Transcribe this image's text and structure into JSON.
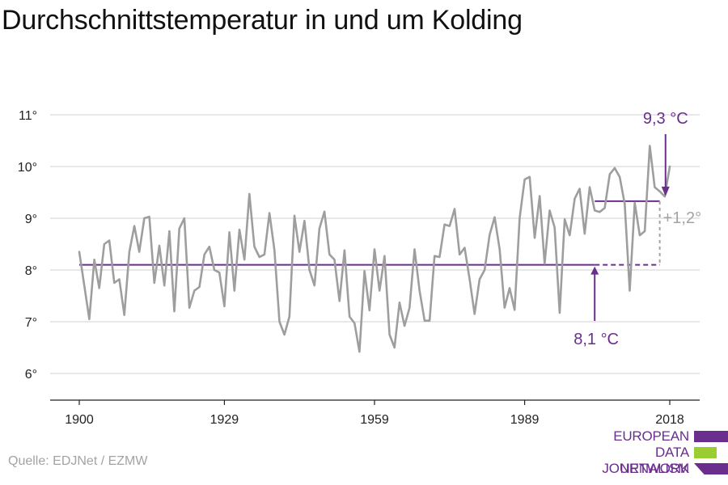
{
  "title": "Durchschnittstemperatur in und um Kolding",
  "source": "Quelle: EDJNet / EZMW",
  "logo": {
    "line1": "EUROPEAN",
    "line2": "DATA JOURNALISM",
    "line3": "NETWORK",
    "colors": [
      "#6a2e8e",
      "#9acd32",
      "#6a2e8e"
    ]
  },
  "chart_data": {
    "type": "line",
    "title": "Durchschnittstemperatur in und um Kolding",
    "x_ticks": [
      1900,
      1929,
      1959,
      1989,
      2018
    ],
    "y_ticks": [
      6,
      7,
      8,
      9,
      10,
      11
    ],
    "y_tick_labels": [
      "6°",
      "7°",
      "8°",
      "9°",
      "10°",
      "11°"
    ],
    "xlim": [
      1900,
      2018
    ],
    "ylim": [
      5.5,
      11.3
    ],
    "grid": true,
    "series": [
      {
        "color": "#9e9e9e",
        "x": [
          1900,
          1901,
          1902,
          1903,
          1904,
          1905,
          1906,
          1907,
          1908,
          1909,
          1910,
          1911,
          1912,
          1913,
          1914,
          1915,
          1916,
          1917,
          1918,
          1919,
          1920,
          1921,
          1922,
          1923,
          1924,
          1925,
          1926,
          1927,
          1928,
          1929,
          1930,
          1931,
          1932,
          1933,
          1934,
          1935,
          1936,
          1937,
          1938,
          1939,
          1940,
          1941,
          1942,
          1943,
          1944,
          1945,
          1946,
          1947,
          1948,
          1949,
          1950,
          1951,
          1952,
          1953,
          1954,
          1955,
          1956,
          1957,
          1958,
          1959,
          1960,
          1961,
          1962,
          1963,
          1964,
          1965,
          1966,
          1967,
          1968,
          1969,
          1970,
          1971,
          1972,
          1973,
          1974,
          1975,
          1976,
          1977,
          1978,
          1979,
          1980,
          1981,
          1982,
          1983,
          1984,
          1985,
          1986,
          1987,
          1988,
          1989,
          1990,
          1991,
          1992,
          1993,
          1994,
          1995,
          1996,
          1997,
          1998,
          1999,
          2000,
          2001,
          2002,
          2003,
          2004,
          2005,
          2006,
          2007,
          2008,
          2009,
          2010,
          2011,
          2012,
          2013,
          2014,
          2015,
          2016,
          2017,
          2018
        ],
        "values": [
          8.35,
          7.7,
          7.05,
          8.2,
          7.65,
          8.5,
          8.57,
          7.75,
          7.82,
          7.13,
          8.35,
          8.85,
          8.35,
          9.0,
          9.03,
          7.75,
          8.47,
          7.7,
          8.75,
          7.2,
          8.8,
          9.0,
          7.27,
          7.6,
          7.67,
          8.3,
          8.45,
          8.0,
          7.95,
          7.3,
          8.73,
          7.6,
          8.78,
          8.2,
          9.47,
          8.45,
          8.25,
          8.3,
          9.1,
          8.38,
          7.0,
          6.75,
          7.1,
          9.05,
          8.35,
          8.95,
          8.0,
          7.7,
          8.8,
          9.13,
          8.3,
          8.2,
          7.4,
          8.38,
          7.1,
          6.97,
          6.42,
          7.98,
          7.22,
          8.4,
          7.6,
          8.27,
          6.75,
          6.5,
          7.37,
          6.92,
          7.27,
          8.4,
          7.6,
          7.02,
          7.02,
          8.27,
          8.25,
          8.88,
          8.85,
          9.18,
          8.3,
          8.43,
          7.83,
          7.15,
          7.82,
          8.0,
          8.68,
          9.02,
          8.4,
          7.27,
          7.65,
          7.23,
          9.0,
          9.75,
          9.8,
          8.62,
          9.43,
          8.12,
          9.15,
          8.82,
          7.17,
          8.98,
          8.67,
          9.38,
          9.57,
          8.7,
          9.6,
          9.15,
          9.12,
          9.2,
          9.85,
          9.97,
          9.8,
          9.28,
          7.6,
          9.3,
          8.67,
          8.75,
          10.4,
          9.6,
          9.52,
          9.42,
          10.0
        ]
      }
    ],
    "reference_lines": [
      {
        "label": "8,1 °C",
        "value": 8.1,
        "x_start": 1900,
        "x_end": 2003,
        "x_dashed_end": 2016,
        "color": "#6a2e8e"
      },
      {
        "label": "9,3 °C",
        "value": 9.33,
        "x_start": 2003,
        "x_end": 2016,
        "color": "#6a2e8e"
      }
    ],
    "difference_label": "+1,2°",
    "annotation_colors": {
      "purple": "#6a2e8e",
      "diff": "#a3a3a3"
    }
  }
}
